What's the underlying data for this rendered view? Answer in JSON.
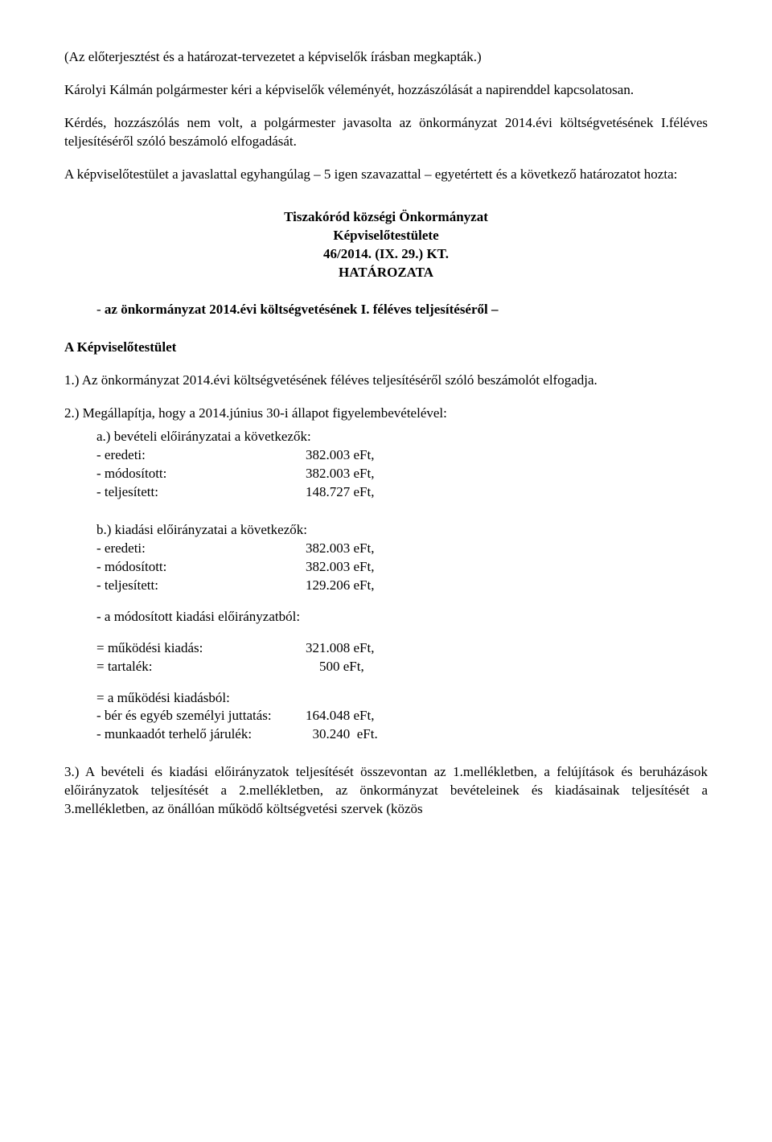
{
  "intro1": "(Az előterjesztést és a határozat-tervezetet a képviselők írásban megkapták.)",
  "intro2": "Károlyi Kálmán polgármester kéri a képviselők véleményét, hozzászólását a napirenddel kapcsolatosan.",
  "intro3": "Kérdés, hozzászólás nem volt, a polgármester javasolta az önkormányzat 2014.évi költségvetésének I.féléves teljesítéséről szóló beszámoló elfogadását.",
  "intro4": "A képviselőtestület a javaslattal egyhangúlag – 5 igen szavazattal – egyetértett és a következő határozatot hozta:",
  "center": {
    "l1": "Tiszakóród községi Önkormányzat",
    "l2": "Képviselőtestülete",
    "l3": "46/2014. (IX. 29.) KT.",
    "l4": "HATÁROZATA"
  },
  "bullet_pre": "-   ",
  "bullet_text": "az önkormányzat 2014.évi költségvetésének I. féléves teljesítéséről –",
  "section_hdr": "A Képviselőtestület",
  "p1": "1.) Az önkormányzat 2014.évi költségvetésének féléves teljesítéséről szóló beszámolót elfogadja.",
  "p2": "2.) Megállapítja, hogy a 2014.június 30-i állapot figyelembevételével:",
  "lists": {
    "a_hdr": "a.) bevételi előirányzatai a következők:",
    "b_hdr": "b.) kiadási előirányzatai a következők:",
    "rows_a": [
      {
        "label": "- eredeti:",
        "value": "382.003 eFt,"
      },
      {
        "label": "- módosított:",
        "value": "382.003 eFt,"
      },
      {
        "label": "- teljesített:",
        "value": "148.727 eFt,"
      }
    ],
    "rows_b": [
      {
        "label": "- eredeti:",
        "value": "382.003 eFt,"
      },
      {
        "label": "- módosított:",
        "value": "382.003 eFt,"
      },
      {
        "label": "- teljesített:",
        "value": "129.206 eFt,"
      }
    ],
    "mod_hdr": "- a módosított kiadási előirányzatból:",
    "eq1": [
      {
        "label": "= működési kiadás:",
        "value": "321.008 eFt,"
      },
      {
        "label": "= tartalék:",
        "value": "    500 eFt,"
      }
    ],
    "eq2_hdr": "= a működési kiadásból:",
    "eq2": [
      {
        "label": "- bér és egyéb személyi juttatás:",
        "value": "164.048 eFt,"
      },
      {
        "label": "- munkaadót terhelő járulék:",
        "value": "  30.240  eFt."
      }
    ]
  },
  "p3": "3.) A bevételi és kiadási előirányzatok teljesítését összevontan az 1.mellékletben, a felújítások és beruházások előirányzatok teljesítését a 2.mellékletben, az önkormányzat bevételeinek és kiadásainak teljesítését a 3.mellékletben, az önállóan működő költségvetési szervek (közös"
}
